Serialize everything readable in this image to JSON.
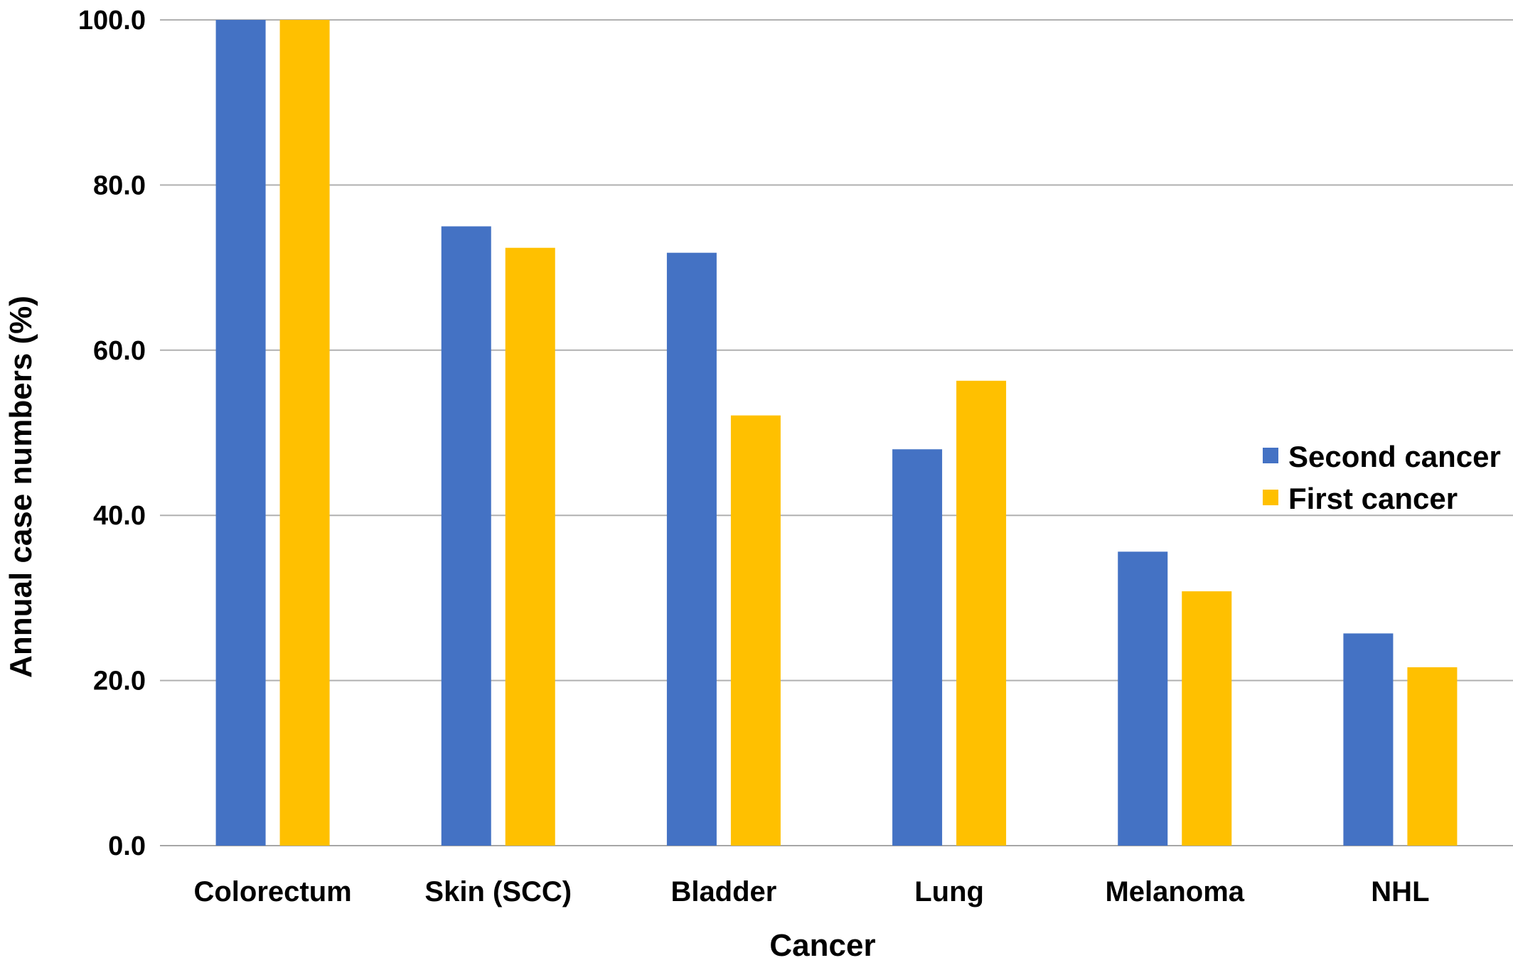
{
  "chart_data": {
    "type": "bar",
    "title": "",
    "xlabel": "Cancer",
    "ylabel": "Annual case numbers (%)",
    "ylim": [
      0,
      100
    ],
    "yticks": [
      "0.0",
      "20.0",
      "40.0",
      "60.0",
      "80.0",
      "100.0"
    ],
    "grid": true,
    "legend_position": "right",
    "categories": [
      "Colorectum",
      "Skin (SCC)",
      "Bladder",
      "Lung",
      "Melanoma",
      "NHL"
    ],
    "series": [
      {
        "name": "Second cancer",
        "color": "#4472C4",
        "values": [
          100.0,
          75.0,
          71.8,
          48.0,
          35.6,
          25.7
        ]
      },
      {
        "name": "First cancer",
        "color": "#FFC000",
        "values": [
          100.0,
          72.4,
          52.1,
          56.3,
          30.8,
          21.6
        ]
      }
    ]
  }
}
